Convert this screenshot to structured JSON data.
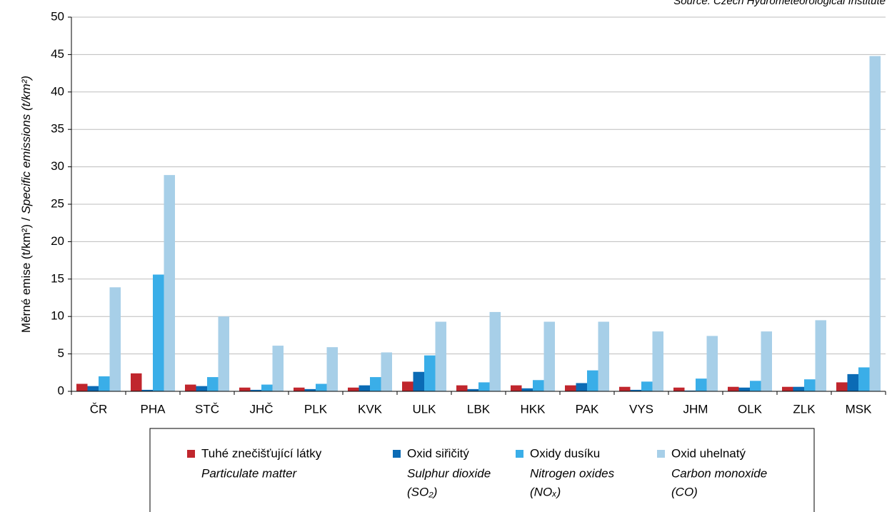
{
  "chart_data": {
    "type": "bar",
    "source": "Source: Czech Hydrometeorological Institute",
    "y_label": [
      "Měrné emise (t/km²) /",
      "Specific emissions (t/km²)"
    ],
    "categories": [
      "ČR",
      "PHA",
      "STČ",
      "JHČ",
      "PLK",
      "KVK",
      "ULK",
      "LBK",
      "HKK",
      "PAK",
      "VYS",
      "JHM",
      "OLK",
      "ZLK",
      "MSK"
    ],
    "series": [
      {
        "name": "Tuhé znečišťující látky",
        "name_en": [
          "Particulate matter"
        ],
        "color": "#c0262d",
        "values": [
          1.0,
          2.4,
          0.9,
          0.5,
          0.5,
          0.5,
          1.3,
          0.8,
          0.8,
          0.8,
          0.6,
          0.5,
          0.6,
          0.6,
          1.2
        ]
      },
      {
        "name": "Oxid siřičitý",
        "name_en": [
          "Sulphur dioxide",
          "(SO₂)"
        ],
        "color": "#0b6bb5",
        "values": [
          0.7,
          0.2,
          0.7,
          0.2,
          0.3,
          0.8,
          2.6,
          0.3,
          0.4,
          1.1,
          0.2,
          0.1,
          0.5,
          0.6,
          2.3
        ]
      },
      {
        "name": "Oxidy dusíku",
        "name_en": [
          "Nitrogen oxides",
          "(NOₓ)"
        ],
        "color": "#3aaee8",
        "values": [
          2.0,
          15.6,
          1.9,
          0.9,
          1.0,
          1.9,
          4.8,
          1.2,
          1.5,
          2.8,
          1.3,
          1.7,
          1.4,
          1.6,
          3.2
        ]
      },
      {
        "name": "Oxid uhelnatý",
        "name_en": [
          "Carbon monoxide",
          "(CO)"
        ],
        "color": "#a7cfe8",
        "values": [
          13.9,
          28.9,
          10.0,
          6.1,
          5.9,
          5.2,
          9.3,
          10.6,
          9.3,
          9.3,
          8.0,
          7.4,
          8.0,
          9.5,
          44.8
        ]
      }
    ],
    "ylim": [
      0,
      50
    ],
    "yticks": [
      0,
      5,
      10,
      15,
      20,
      25,
      30,
      35,
      40,
      45,
      50
    ],
    "grid": true
  }
}
